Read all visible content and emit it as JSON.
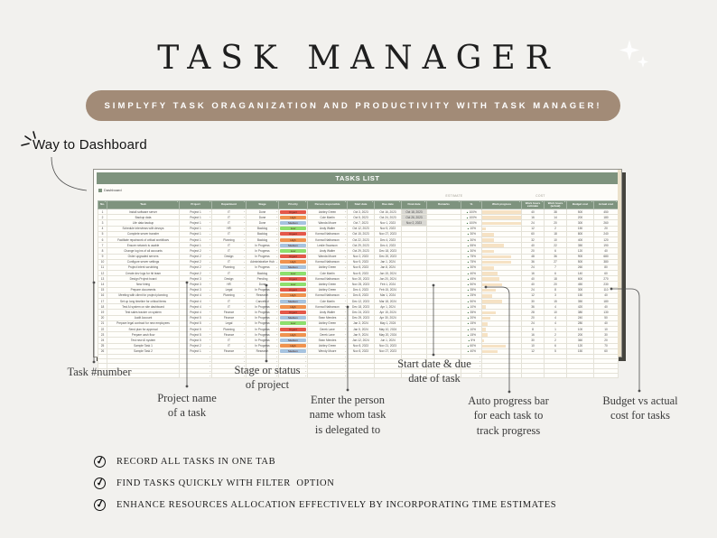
{
  "page": {
    "title": "TASK MANAGER",
    "banner_text": "SIMPLYFY TASK ORAGANIZATION AND PRODUCTIVITY WITH TASK MANAGER!",
    "dashboard_note": "Way to Dashboard"
  },
  "sheet": {
    "title_bar": "TASKS LIST",
    "tab_label": "Dashboard",
    "group_label_estimate": "ESTIMATE",
    "group_label_cost": "COST",
    "columns": [
      "No.",
      "Task",
      "Project",
      "Department",
      "Stage",
      "Priority",
      "Person responsible",
      "Start date",
      "Due date",
      "Final date",
      "Remarks",
      "%",
      "Work progress",
      "Work hours estimate",
      "Work hours (actual)",
      "Budget cost",
      "Actual cost"
    ],
    "priority_colors": {
      "Urgent": "#e4584a",
      "High": "#f0934f",
      "Medium": "#a6c3e0",
      "Low": "#8edf6e"
    },
    "progress_bar_color": "#f6e2c4",
    "header_green": "#7e937e",
    "banner_tan": "#a28b77",
    "empty_row_count": 5,
    "rows": [
      {
        "no": 1,
        "task": "Install software server",
        "project": "Project 1",
        "dept": "IT",
        "stage": "Done",
        "priority": "Urgent",
        "person": "Ashley Green",
        "start": "Oct 3, 2023",
        "due": "Oct 16, 2023",
        "final": "Oct 18, 2023",
        "remarks": "",
        "pct": 100,
        "est": 40,
        "act": 38,
        "budget": 500,
        "actual": 450
      },
      {
        "no": 2,
        "task": "Backup data",
        "project": "Project 1",
        "dept": "IT",
        "stage": "Done",
        "priority": "High",
        "person": "Cole Martin",
        "start": "Oct 5, 2023",
        "due": "Oct 24, 2023",
        "final": "Oct 26, 2023",
        "remarks": "",
        "pct": 100,
        "est": 16,
        "act": 14,
        "budget": 200,
        "actual": 180
      },
      {
        "no": 3,
        "task": "Life data backup",
        "project": "Project 1",
        "dept": "IT",
        "stage": "Done",
        "priority": "Medium",
        "person": "Wanda Moore",
        "start": "Oct 7, 2023",
        "due": "Nov 1, 2023",
        "final": "Nov 2, 2023",
        "remarks": "",
        "pct": 100,
        "est": 24,
        "act": 20,
        "budget": 300,
        "actual": 260
      },
      {
        "no": 4,
        "task": "Schedule interviews with devops",
        "project": "Project 1",
        "dept": "HR",
        "stage": "Backlog",
        "priority": "Low",
        "person": "Andy Walter",
        "start": "Oct 12, 2023",
        "due": "Nov 5, 2023",
        "final": "",
        "remarks": "",
        "pct": 10,
        "est": 12,
        "act": 2,
        "budget": 150,
        "actual": 20
      },
      {
        "no": 5,
        "task": "Complete server transfer",
        "project": "Project 1",
        "dept": "IT",
        "stage": "Backlog",
        "priority": "Urgent",
        "person": "Konrad Nathanson",
        "start": "Oct 15, 2023",
        "due": "Nov 27, 2023",
        "final": "",
        "remarks": "",
        "pct": 30,
        "est": 60,
        "act": 18,
        "budget": 800,
        "actual": 240
      },
      {
        "no": 6,
        "task": "Facilitate repairwork of critical workflows",
        "project": "Project 1",
        "dept": "Planning",
        "stage": "Backlog",
        "priority": "High",
        "person": "Konrad Nathanson",
        "start": "Oct 22, 2023",
        "due": "Dec 4, 2023",
        "final": "",
        "remarks": "",
        "pct": 30,
        "est": 32,
        "act": 10,
        "budget": 400,
        "actual": 120
      },
      {
        "no": 7,
        "task": "Ensure network is usable",
        "project": "Project 1",
        "dept": "IT",
        "stage": "In Progress",
        "priority": "Medium",
        "person": "Leslie Swanson",
        "start": "Oct 29, 2023",
        "due": "Dec 4, 2023",
        "final": "",
        "remarks": "",
        "pct": 55,
        "est": 40,
        "act": 22,
        "budget": 350,
        "actual": 190
      },
      {
        "no": 8,
        "task": "Change log ins of all accounts",
        "project": "Project 2",
        "dept": "IT",
        "stage": "In Progress",
        "priority": "Low",
        "person": "Andy Walter",
        "start": "Oct 29, 2023",
        "due": "Dec 18, 2023",
        "final": "",
        "remarks": "",
        "pct": 30,
        "est": 20,
        "act": 6,
        "budget": 120,
        "actual": 40
      },
      {
        "no": 9,
        "task": "Order upgraded servers",
        "project": "Project 2",
        "dept": "Design",
        "stage": "In Progress",
        "priority": "Urgent",
        "person": "Wanda Moore",
        "start": "Nov 2, 2023",
        "due": "Dec 20, 2023",
        "final": "",
        "remarks": "",
        "pct": 75,
        "est": 48,
        "act": 36,
        "budget": 900,
        "actual": 680
      },
      {
        "no": 10,
        "task": "Configure server settings",
        "project": "Project 2",
        "dept": "IT",
        "stage": "Administrative Hub",
        "priority": "High",
        "person": "Konrad Nathanson",
        "start": "Nov 5, 2023",
        "due": "Jan 1, 2024",
        "final": "",
        "remarks": "",
        "pct": 75,
        "est": 36,
        "act": 27,
        "budget": 500,
        "actual": 380
      },
      {
        "no": 11,
        "task": "Project intent scrubbing",
        "project": "Project 2",
        "dept": "Planning",
        "stage": "In Progress",
        "priority": "Medium",
        "person": "Ashley Green",
        "start": "Nov 8, 2023",
        "due": "Jan 8, 2024",
        "final": "",
        "remarks": "",
        "pct": 30,
        "est": 24,
        "act": 7,
        "budget": 260,
        "actual": 80
      },
      {
        "no": 12,
        "task": "Create dev logs for hit team",
        "project": "Project 2",
        "dept": "IT",
        "stage": "Backlog",
        "priority": "Low",
        "person": "Cole Martin",
        "start": "Nov 8, 2023",
        "due": "Jan 15, 2024",
        "final": "",
        "remarks": "",
        "pct": 40,
        "est": 16,
        "act": 6,
        "budget": 140,
        "actual": 60
      },
      {
        "no": 13,
        "task": "Design Project board",
        "project": "Project 3",
        "dept": "Design",
        "stage": "Pending",
        "priority": "Urgent",
        "person": "Konrad Nathanson",
        "start": "Nov 20, 2023",
        "due": "Jan 20, 2024",
        "final": "",
        "remarks": "",
        "pct": 45,
        "est": 40,
        "act": 18,
        "budget": 600,
        "actual": 270
      },
      {
        "no": 14,
        "task": "New hiring",
        "project": "Project 3",
        "dept": "HR",
        "stage": "Done",
        "priority": "Low",
        "person": "Ashley Green",
        "start": "Nov 25, 2023",
        "due": "Feb 1, 2024",
        "final": "",
        "remarks": "",
        "pct": 50,
        "est": 40,
        "act": 20,
        "budget": 450,
        "actual": 230
      },
      {
        "no": 15,
        "task": "Prepare documents",
        "project": "Project 3",
        "dept": "Legal",
        "stage": "In Progress",
        "priority": "Urgent",
        "person": "Ashley Green",
        "start": "Dec 4, 2023",
        "due": "Feb 15, 2024",
        "final": "",
        "remarks": "",
        "pct": 35,
        "est": 24,
        "act": 8,
        "budget": 300,
        "actual": 110
      },
      {
        "no": 16,
        "task": "Meeting with client for project planning",
        "project": "Project 4",
        "dept": "Planning",
        "stage": "Research",
        "priority": "High",
        "person": "Konrad Nathanson",
        "start": "Dec 8, 2023",
        "due": "Mar 1, 2024",
        "final": "",
        "remarks": "",
        "pct": 25,
        "est": 12,
        "act": 3,
        "budget": 150,
        "actual": 40
      },
      {
        "no": 17,
        "task": "Set up long timeline for critical items",
        "project": "Project 4",
        "dept": "IT",
        "stage": "Cancelled",
        "priority": "Medium",
        "person": "Cole Martin",
        "start": "Dec 12, 2023",
        "due": "Mar 18, 2024",
        "final": "",
        "remarks": "",
        "pct": 50,
        "est": 30,
        "act": 15,
        "budget": 350,
        "actual": 180
      },
      {
        "no": 18,
        "task": "Test AI system on site dashboard",
        "project": "Project 4",
        "dept": "IT",
        "stage": "In Progress",
        "priority": "High",
        "person": "Konrad Nathanson",
        "start": "Dec 18, 2023",
        "due": "Apr 1, 2024",
        "final": "",
        "remarks": "",
        "pct": 10,
        "est": 36,
        "act": 4,
        "budget": 420,
        "actual": 40
      },
      {
        "no": 19,
        "task": "Test sales tracker on system",
        "project": "Project 4",
        "dept": "Finance",
        "stage": "In Progress",
        "priority": "Urgent",
        "person": "Andy Walter",
        "start": "Dec 24, 2023",
        "due": "Apr 15, 2024",
        "final": "",
        "remarks": "",
        "pct": 35,
        "est": 28,
        "act": 10,
        "budget": 380,
        "actual": 130
      },
      {
        "no": 20,
        "task": "Audit Account",
        "project": "Project 5",
        "dept": "Finance",
        "stage": "In Progress",
        "priority": "Medium",
        "person": "Sean Mendes",
        "start": "Dec 29, 2023",
        "due": "Apr 30, 2024",
        "final": "",
        "remarks": "",
        "pct": 20,
        "est": 20,
        "act": 4,
        "budget": 240,
        "actual": 50
      },
      {
        "no": 21,
        "task": "Prepare legal contract for new employees",
        "project": "Project 5",
        "dept": "Legal",
        "stage": "In Progress",
        "priority": "Low",
        "person": "Ashley Green",
        "start": "Jan 3, 2024",
        "due": "May 1, 2024",
        "final": "",
        "remarks": "",
        "pct": 15,
        "est": 24,
        "act": 4,
        "budget": 280,
        "actual": 40
      },
      {
        "no": 22,
        "task": "Send plan for approval",
        "project": "Project 5",
        "dept": "Planning",
        "stage": "In Progress",
        "priority": "Urgent",
        "person": "Derek Lane",
        "start": "Jan 5, 2024",
        "due": "May 10, 2024",
        "final": "",
        "remarks": "",
        "pct": 10,
        "est": 8,
        "act": 1,
        "budget": 100,
        "actual": 10
      },
      {
        "no": 23,
        "task": "Prepare cash flow",
        "project": "Project 5",
        "dept": "Finance",
        "stage": "In Progress",
        "priority": "High",
        "person": "Derek Lane",
        "start": "Jan 9, 2024",
        "due": "May 20, 2024",
        "final": "",
        "remarks": "",
        "pct": 15,
        "est": 16,
        "act": 2,
        "budget": 200,
        "actual": 30
      },
      {
        "no": 24,
        "task": "Test new AI system",
        "project": "Project 5",
        "dept": "IT",
        "stage": "In Progress",
        "priority": "Medium",
        "person": "Sean Mendes",
        "start": "Jan 12, 2024",
        "due": "Jun 1, 2024",
        "final": "",
        "remarks": "",
        "pct": 5,
        "est": 30,
        "act": 2,
        "budget": 360,
        "actual": 20
      },
      {
        "no": 25,
        "task": "Sample Task 1",
        "project": "Project 2",
        "dept": "IT",
        "stage": "In Progress",
        "priority": "High",
        "person": "Ashley Green",
        "start": "Nov 8, 2023",
        "due": "Nov 21, 2023",
        "final": "",
        "remarks": "",
        "pct": 60,
        "est": 10,
        "act": 6,
        "budget": 120,
        "actual": 70
      },
      {
        "no": 26,
        "task": "Sample Task 2",
        "project": "Project 1",
        "dept": "Finance",
        "stage": "Research",
        "priority": "Medium",
        "person": "Wendy Moore",
        "start": "Nov 8, 2023",
        "due": "Nov 27, 2023",
        "final": "",
        "remarks": "",
        "pct": 40,
        "est": 12,
        "act": 5,
        "budget": 150,
        "actual": 60
      }
    ]
  },
  "callouts": [
    {
      "lines": [
        "Task #number"
      ]
    },
    {
      "lines": [
        "Project name",
        "of a task"
      ]
    },
    {
      "lines": [
        "Stage or status",
        "of project"
      ]
    },
    {
      "lines": [
        "Enter the person",
        "name whom task",
        "is delegated to"
      ]
    },
    {
      "lines": [
        "Start date & due",
        "date of task"
      ]
    },
    {
      "lines": [
        "Auto progress bar",
        "for each task to",
        "track progress"
      ]
    },
    {
      "lines": [
        "Budget vs actual",
        "cost for tasks"
      ]
    }
  ],
  "checklist": [
    "RECORD ALL TASKS IN ONE TAB",
    "FIND TASKS QUICKLY WITH FILTER  OPTION",
    "ENHANCE RESOURCES ALLOCATION EFFECTIVELY BY INCORPORATING TIME ESTIMATES"
  ]
}
